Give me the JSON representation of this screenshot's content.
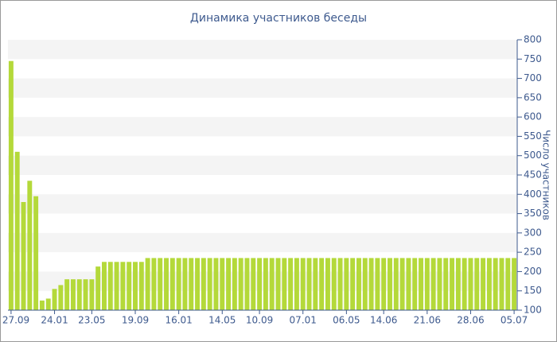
{
  "chart_data": {
    "type": "bar",
    "title": "Динамика участников беседы",
    "y_label": "Число участников",
    "color": "#b4d93a",
    "grid": true,
    "ylim": [
      100,
      800
    ],
    "yticks": [
      100,
      150,
      200,
      250,
      300,
      350,
      400,
      450,
      500,
      550,
      600,
      650,
      700,
      750,
      800
    ],
    "categories": [
      "27.09",
      null,
      null,
      null,
      null,
      null,
      null,
      "24.01",
      null,
      null,
      null,
      null,
      null,
      "23.05",
      null,
      null,
      null,
      null,
      null,
      null,
      "19.09",
      null,
      null,
      null,
      null,
      null,
      null,
      "16.01",
      null,
      null,
      null,
      null,
      null,
      null,
      "14.05",
      null,
      null,
      null,
      null,
      null,
      "10.09",
      null,
      null,
      null,
      null,
      null,
      null,
      "07.01",
      null,
      null,
      null,
      null,
      null,
      null,
      "06.05",
      null,
      null,
      null,
      null,
      null,
      "14.06",
      null,
      null,
      null,
      null,
      null,
      null,
      "21.06",
      null,
      null,
      null,
      null,
      null,
      null,
      "28.06",
      null,
      null,
      null,
      null,
      null,
      null,
      "05.07"
    ],
    "values": [
      745,
      510,
      380,
      435,
      395,
      125,
      130,
      155,
      165,
      180,
      180,
      180,
      180,
      180,
      213,
      225,
      225,
      225,
      225,
      225,
      225,
      225,
      235,
      235,
      235,
      235,
      235,
      235,
      235,
      235,
      235,
      235,
      235,
      235,
      235,
      235,
      235,
      235,
      235,
      235,
      235,
      235,
      235,
      235,
      235,
      235,
      235,
      235,
      235,
      235,
      235,
      235,
      235,
      235,
      235,
      235,
      235,
      235,
      235,
      235,
      235,
      235,
      235,
      235,
      235,
      235,
      235,
      235,
      235,
      235,
      235,
      235,
      235,
      235,
      235,
      235,
      235,
      235,
      235,
      235,
      235,
      235
    ]
  }
}
